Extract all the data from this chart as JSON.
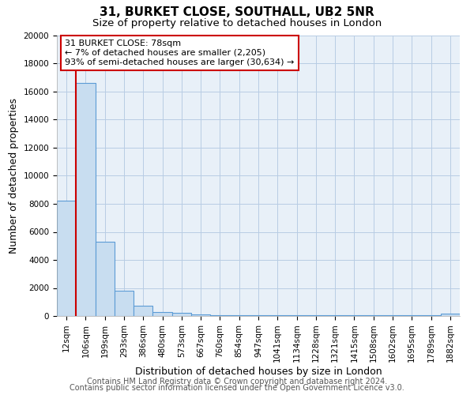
{
  "title_line1": "31, BURKET CLOSE, SOUTHALL, UB2 5NR",
  "title_line2": "Size of property relative to detached houses in London",
  "xlabel": "Distribution of detached houses by size in London",
  "ylabel": "Number of detached properties",
  "bar_labels": [
    "12sqm",
    "106sqm",
    "199sqm",
    "293sqm",
    "386sqm",
    "480sqm",
    "573sqm",
    "667sqm",
    "760sqm",
    "854sqm",
    "947sqm",
    "1041sqm",
    "1134sqm",
    "1228sqm",
    "1321sqm",
    "1415sqm",
    "1508sqm",
    "1602sqm",
    "1695sqm",
    "1789sqm",
    "1882sqm"
  ],
  "bar_values": [
    8200,
    16600,
    5300,
    1800,
    750,
    300,
    200,
    100,
    50,
    50,
    50,
    50,
    50,
    50,
    50,
    50,
    50,
    50,
    50,
    50,
    150
  ],
  "bar_color": "#c8ddf0",
  "bar_edge_color": "#5b9bd5",
  "ylim": [
    0,
    20000
  ],
  "yticks": [
    0,
    2000,
    4000,
    6000,
    8000,
    10000,
    12000,
    14000,
    16000,
    18000,
    20000
  ],
  "annotation_title": "31 BURKET CLOSE: 78sqm",
  "annotation_line1": "← 7% of detached houses are smaller (2,205)",
  "annotation_line2": "93% of semi-detached houses are larger (30,634) →",
  "footer_line1": "Contains HM Land Registry data © Crown copyright and database right 2024.",
  "footer_line2": "Contains public sector information licensed under the Open Government Licence v3.0.",
  "plot_bg_color": "#e8f0f8",
  "fig_bg_color": "#ffffff",
  "grid_color": "#b8cce4",
  "red_line_color": "#cc0000",
  "annotation_edge_color": "#cc0000",
  "title_fontsize": 11,
  "subtitle_fontsize": 9.5,
  "axis_label_fontsize": 9,
  "tick_fontsize": 7.5,
  "annotation_fontsize": 8,
  "footer_fontsize": 7
}
